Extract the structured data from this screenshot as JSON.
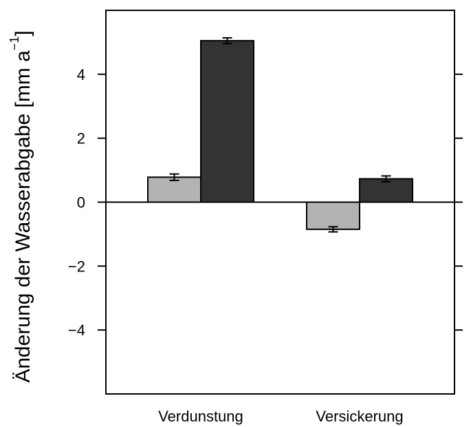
{
  "chart_data": {
    "type": "bar",
    "categories": [
      "Verdunstung",
      "Versickerung"
    ],
    "series": [
      {
        "values": [
          0.78,
          -0.85
        ],
        "errors": [
          0.1,
          0.08
        ],
        "color": "#b3b3b3"
      },
      {
        "values": [
          5.05,
          0.73
        ],
        "errors": [
          0.09,
          0.09
        ],
        "color": "#333333"
      }
    ],
    "ylabel": "Änderung der Wasserabgabe [mm a",
    "ylabel_superscript": "−1",
    "ylabel_suffix": "]",
    "xlabel": "",
    "title": "",
    "ylim": [
      -6,
      6
    ],
    "yticks": [
      -4,
      -2,
      0,
      2,
      4
    ],
    "ytick_labels": [
      "−4",
      "−2",
      "0",
      "2",
      "4"
    ],
    "zero_line": true,
    "grid": false,
    "legend": false
  }
}
